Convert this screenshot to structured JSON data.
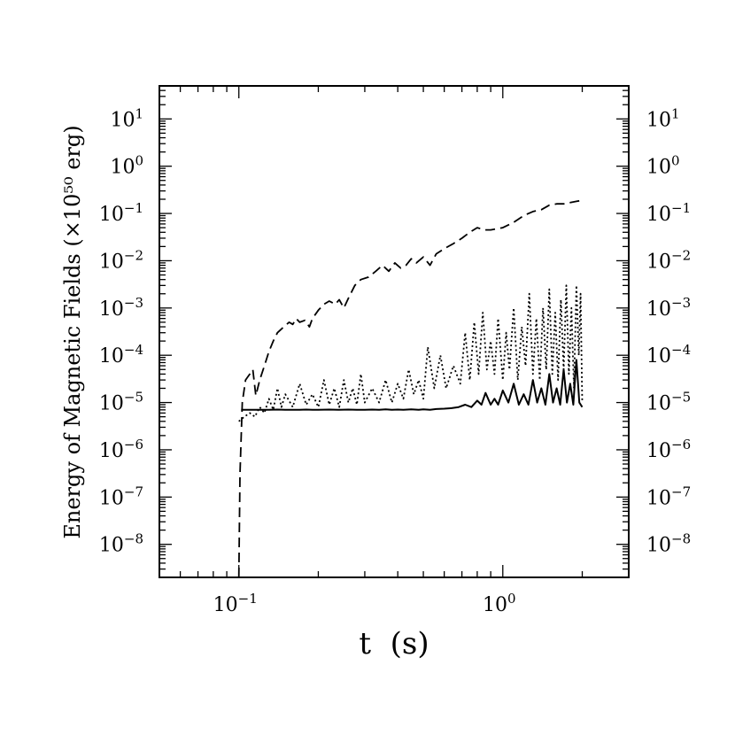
{
  "chart_data": {
    "type": "line",
    "title": "",
    "xlabel": "t  (s)",
    "ylabel": "Energy of Magnetic Fields (×10⁵⁰ erg)",
    "x_scale": "log",
    "y_scale": "log",
    "xlim": [
      0.05,
      3.0
    ],
    "ylim": [
      2e-09,
      50
    ],
    "x_ticks": [
      {
        "value": 0.1,
        "base": "10",
        "exp": "−1"
      },
      {
        "value": 1.0,
        "base": "10",
        "exp": "0"
      }
    ],
    "y_ticks": [
      {
        "value": 10,
        "base": "10",
        "exp": "1"
      },
      {
        "value": 1,
        "base": "10",
        "exp": "0"
      },
      {
        "value": 0.1,
        "base": "10",
        "exp": "−1"
      },
      {
        "value": 0.01,
        "base": "10",
        "exp": "−2"
      },
      {
        "value": 0.001,
        "base": "10",
        "exp": "−3"
      },
      {
        "value": 0.0001,
        "base": "10",
        "exp": "−4"
      },
      {
        "value": 1e-05,
        "base": "10",
        "exp": "−5"
      },
      {
        "value": 1e-06,
        "base": "10",
        "exp": "−6"
      },
      {
        "value": 1e-07,
        "base": "10",
        "exp": "−7"
      },
      {
        "value": 1e-08,
        "base": "10",
        "exp": "−8"
      }
    ],
    "right_axis_labels": true,
    "grid": false,
    "legend": "none",
    "series": [
      {
        "style": "dashed",
        "x": [
          0.1,
          0.101,
          0.103,
          0.106,
          0.11,
          0.113,
          0.116,
          0.12,
          0.125,
          0.13,
          0.135,
          0.14,
          0.148,
          0.155,
          0.16,
          0.165,
          0.17,
          0.178,
          0.185,
          0.19,
          0.2,
          0.21,
          0.22,
          0.232,
          0.24,
          0.25,
          0.26,
          0.275,
          0.29,
          0.31,
          0.33,
          0.35,
          0.37,
          0.39,
          0.41,
          0.43,
          0.45,
          0.47,
          0.5,
          0.53,
          0.56,
          0.6,
          0.65,
          0.7,
          0.75,
          0.8,
          0.85,
          0.9,
          1.0,
          1.1,
          1.2,
          1.3,
          1.4,
          1.5,
          1.6,
          1.7,
          1.8,
          1.9,
          2.0
        ],
        "y": [
          2e-09,
          3e-07,
          1e-05,
          3e-05,
          4e-05,
          5e-05,
          1.4e-05,
          3e-05,
          6e-05,
          0.00012,
          0.0002,
          0.0003,
          0.0004,
          0.0005,
          0.00045,
          0.0006,
          0.0005,
          0.00055,
          0.0004,
          0.0006,
          0.0009,
          0.0012,
          0.0014,
          0.0012,
          0.0015,
          0.001,
          0.0016,
          0.003,
          0.004,
          0.0045,
          0.006,
          0.008,
          0.006,
          0.009,
          0.007,
          0.008,
          0.011,
          0.009,
          0.012,
          0.008,
          0.014,
          0.018,
          0.023,
          0.03,
          0.04,
          0.05,
          0.045,
          0.045,
          0.05,
          0.065,
          0.09,
          0.11,
          0.12,
          0.15,
          0.16,
          0.16,
          0.17,
          0.18,
          0.19
        ]
      },
      {
        "style": "solid",
        "x": [
          0.102,
          0.11,
          0.12,
          0.13,
          0.14,
          0.15,
          0.16,
          0.17,
          0.18,
          0.19,
          0.2,
          0.22,
          0.24,
          0.26,
          0.28,
          0.3,
          0.32,
          0.34,
          0.36,
          0.38,
          0.4,
          0.42,
          0.45,
          0.48,
          0.5,
          0.53,
          0.56,
          0.6,
          0.64,
          0.68,
          0.72,
          0.76,
          0.8,
          0.83,
          0.86,
          0.9,
          0.93,
          0.96,
          1.0,
          1.05,
          1.1,
          1.15,
          1.2,
          1.25,
          1.3,
          1.35,
          1.4,
          1.45,
          1.5,
          1.55,
          1.6,
          1.65,
          1.7,
          1.75,
          1.8,
          1.85,
          1.9,
          1.95,
          2.0
        ],
        "y": [
          7e-06,
          7e-06,
          7e-06,
          7e-06,
          7.1e-06,
          7e-06,
          7e-06,
          7e-06,
          7.1e-06,
          7e-06,
          7e-06,
          7.1e-06,
          7e-06,
          7.1e-06,
          7e-06,
          7e-06,
          7.1e-06,
          7e-06,
          7.2e-06,
          7e-06,
          7.1e-06,
          7e-06,
          7.2e-06,
          7e-06,
          7.2e-06,
          7e-06,
          7.3e-06,
          7.4e-06,
          7.6e-06,
          8e-06,
          9e-06,
          8e-06,
          1.1e-05,
          9e-06,
          1.6e-05,
          9e-06,
          1.2e-05,
          9e-06,
          1.8e-05,
          1e-05,
          2.5e-05,
          9e-06,
          1.5e-05,
          9e-06,
          3e-05,
          1e-05,
          2e-05,
          9e-06,
          4e-05,
          1e-05,
          2e-05,
          9e-06,
          5e-05,
          1e-05,
          2.5e-05,
          9e-06,
          8e-05,
          1e-05,
          8e-06
        ]
      },
      {
        "style": "dotted",
        "x": [
          0.1,
          0.105,
          0.11,
          0.115,
          0.12,
          0.125,
          0.13,
          0.135,
          0.14,
          0.145,
          0.15,
          0.16,
          0.17,
          0.18,
          0.19,
          0.2,
          0.21,
          0.22,
          0.23,
          0.24,
          0.25,
          0.26,
          0.27,
          0.28,
          0.29,
          0.3,
          0.32,
          0.34,
          0.36,
          0.38,
          0.4,
          0.42,
          0.44,
          0.46,
          0.48,
          0.5,
          0.52,
          0.55,
          0.58,
          0.61,
          0.65,
          0.69,
          0.72,
          0.75,
          0.78,
          0.81,
          0.84,
          0.87,
          0.9,
          0.93,
          0.96,
          1.0,
          1.03,
          1.06,
          1.1,
          1.14,
          1.18,
          1.22,
          1.26,
          1.3,
          1.34,
          1.38,
          1.42,
          1.46,
          1.5,
          1.54,
          1.58,
          1.62,
          1.66,
          1.7,
          1.74,
          1.78,
          1.82,
          1.86,
          1.9,
          1.94,
          1.97,
          2.0
        ],
        "y": [
          4e-06,
          5e-06,
          6e-06,
          5e-06,
          8e-06,
          6e-06,
          1.2e-05,
          7e-06,
          2e-05,
          8e-06,
          1.5e-05,
          8e-06,
          2.5e-05,
          9e-06,
          1.5e-05,
          8e-06,
          3e-05,
          9e-06,
          2e-05,
          8e-06,
          3e-05,
          1e-05,
          2e-05,
          9e-06,
          4e-05,
          1e-05,
          2e-05,
          1e-05,
          3e-05,
          1e-05,
          2.5e-05,
          1.2e-05,
          5e-05,
          1.5e-05,
          3e-05,
          1.2e-05,
          0.00015,
          2e-05,
          0.0001,
          2e-05,
          6e-05,
          2.5e-05,
          0.0003,
          3e-05,
          0.0005,
          4e-05,
          0.0008,
          5e-05,
          0.0002,
          4e-05,
          0.0006,
          3e-05,
          0.0003,
          5e-05,
          0.001,
          3e-05,
          0.0004,
          6e-05,
          0.002,
          4e-05,
          0.0006,
          3e-05,
          0.001,
          5e-05,
          0.0025,
          4e-05,
          0.0008,
          3e-05,
          0.0015,
          5e-05,
          0.003,
          4e-05,
          0.001,
          2e-05,
          0.003,
          0.0001,
          0.002,
          1e-05
        ]
      }
    ]
  }
}
